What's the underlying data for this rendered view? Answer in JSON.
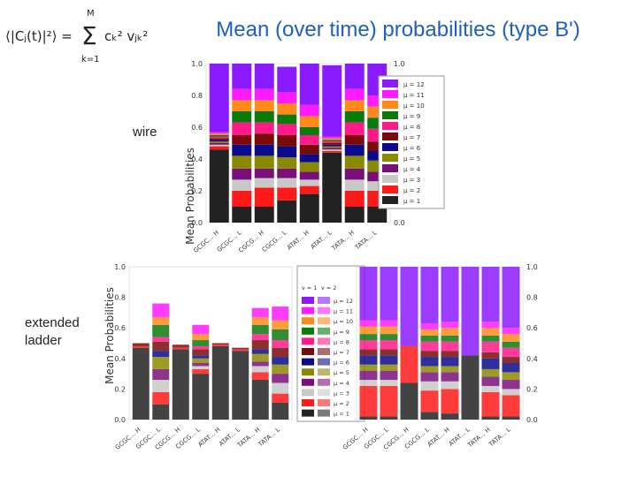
{
  "slide": {
    "title": "Mean (over time) probabilities (type B')",
    "formula_lhs": "⟨|Cⱼ(t)|²⟩ =",
    "formula_sum_top": "M",
    "formula_sum_bottom": "k=1",
    "formula_term": "cₖ² vⱼₖ²",
    "wire_label": "wire",
    "ladder_label": "extended ladder"
  },
  "legend": {
    "wire": [
      "μ = 12",
      "μ = 11",
      "μ = 10",
      "μ = 9",
      "μ = 8",
      "μ = 7",
      "μ = 6",
      "μ = 5",
      "μ = 4",
      "μ = 3",
      "μ = 2",
      "μ = 1"
    ],
    "ladder_header_1": "ν = 1",
    "ladder_header_2": "ν = 2",
    "ladder": [
      "μ = 12",
      "μ = 11",
      "μ = 10",
      "μ = 9",
      "μ = 8",
      "μ = 7",
      "μ = 6",
      "μ = 5",
      "μ = 4",
      "μ = 3",
      "μ = 2",
      "μ = 1"
    ]
  },
  "colors": [
    "#222222",
    "#ff1a1a",
    "#c8c8c8",
    "#7a0f7a",
    "#8a8a00",
    "#0a0a8a",
    "#7a0a0a",
    "#ff1a8a",
    "#0a7a0a",
    "#ff8a1a",
    "#ff1aff",
    "#8a1aff"
  ],
  "chart_data": [
    {
      "name": "wire",
      "type": "bar",
      "stacked": true,
      "ylabel": "Mean Probabilities",
      "ylim": [
        0,
        1
      ],
      "yticks": [
        "0.0",
        "0.2",
        "0.4",
        "0.6",
        "0.8",
        "1.0"
      ],
      "categories": [
        "GCGC... H",
        "GCGC... L",
        "CGCG... H",
        "CGCG... L",
        "ATAT... H",
        "ATAT... L",
        "TATA... H",
        "TATA... L"
      ],
      "series": [
        {
          "name": "μ = 1",
          "values": [
            0.46,
            0.1,
            0.1,
            0.14,
            0.18,
            0.44,
            0.1,
            0.1
          ]
        },
        {
          "name": "μ = 2",
          "values": [
            0.02,
            0.1,
            0.12,
            0.08,
            0.05,
            0.01,
            0.1,
            0.1
          ]
        },
        {
          "name": "μ = 3",
          "values": [
            0.01,
            0.07,
            0.06,
            0.06,
            0.04,
            0.01,
            0.07,
            0.06
          ]
        },
        {
          "name": "μ = 4",
          "values": [
            0.01,
            0.07,
            0.06,
            0.06,
            0.05,
            0.01,
            0.07,
            0.06
          ]
        },
        {
          "name": "μ = 5",
          "values": [
            0.01,
            0.08,
            0.08,
            0.07,
            0.06,
            0.01,
            0.08,
            0.07
          ]
        },
        {
          "name": "μ = 6",
          "values": [
            0.01,
            0.07,
            0.07,
            0.07,
            0.05,
            0.01,
            0.07,
            0.06
          ]
        },
        {
          "name": "μ = 7",
          "values": [
            0.01,
            0.06,
            0.07,
            0.07,
            0.06,
            0.01,
            0.06,
            0.06
          ]
        },
        {
          "name": "μ = 8",
          "values": [
            0.01,
            0.08,
            0.07,
            0.07,
            0.06,
            0.01,
            0.08,
            0.08
          ]
        },
        {
          "name": "μ = 9",
          "values": [
            0.01,
            0.07,
            0.07,
            0.06,
            0.05,
            0.01,
            0.07,
            0.07
          ]
        },
        {
          "name": "μ = 10",
          "values": [
            0.01,
            0.07,
            0.07,
            0.07,
            0.07,
            0.01,
            0.07,
            0.07
          ]
        },
        {
          "name": "μ = 11",
          "values": [
            0.01,
            0.07,
            0.07,
            0.07,
            0.07,
            0.01,
            0.07,
            0.07
          ]
        },
        {
          "name": "μ = 12",
          "values": [
            0.43,
            0.16,
            0.16,
            0.16,
            0.26,
            0.45,
            0.16,
            0.2
          ]
        }
      ]
    },
    {
      "name": "extended ladder (ν = 1)",
      "type": "bar",
      "stacked": true,
      "ylabel": "Mean Probabilities",
      "ylim": [
        0,
        1
      ],
      "yticks": [
        "0.0",
        "0.2",
        "0.4",
        "0.6",
        "0.8",
        "1.0"
      ],
      "categories": [
        "GCGC... H",
        "GCGC... L",
        "CGCG... H",
        "CGCG... L",
        "ATAT... H",
        "ATAT... L",
        "TATA... H",
        "TATA... L"
      ],
      "series": [
        {
          "name": "μ = 1",
          "values": [
            0.47,
            0.1,
            0.46,
            0.3,
            0.48,
            0.45,
            0.26,
            0.11
          ]
        },
        {
          "name": "μ = 2",
          "values": [
            0.01,
            0.08,
            0.01,
            0.03,
            0.01,
            0.01,
            0.05,
            0.06
          ]
        },
        {
          "name": "μ = 3",
          "values": [
            0.0,
            0.08,
            0.0,
            0.02,
            0.0,
            0.0,
            0.04,
            0.07
          ]
        },
        {
          "name": "μ = 4",
          "values": [
            0.0,
            0.07,
            0.0,
            0.02,
            0.0,
            0.0,
            0.03,
            0.06
          ]
        },
        {
          "name": "μ = 5",
          "values": [
            0.0,
            0.08,
            0.0,
            0.03,
            0.0,
            0.0,
            0.05,
            0.06
          ]
        },
        {
          "name": "μ = 6",
          "values": [
            0.0,
            0.04,
            0.0,
            0.02,
            0.0,
            0.0,
            0.03,
            0.05
          ]
        },
        {
          "name": "μ = 7",
          "values": [
            0.02,
            0.06,
            0.02,
            0.04,
            0.01,
            0.01,
            0.06,
            0.06
          ]
        },
        {
          "name": "μ = 8",
          "values": [
            0.0,
            0.03,
            0.0,
            0.02,
            0.0,
            0.0,
            0.04,
            0.05
          ]
        },
        {
          "name": "μ = 9",
          "values": [
            0.0,
            0.08,
            0.0,
            0.04,
            0.0,
            0.0,
            0.06,
            0.07
          ]
        },
        {
          "name": "μ = 10",
          "values": [
            0.0,
            0.05,
            0.0,
            0.04,
            0.0,
            0.0,
            0.05,
            0.06
          ]
        },
        {
          "name": "μ = 11",
          "values": [
            0.0,
            0.09,
            0.0,
            0.06,
            0.0,
            0.0,
            0.06,
            0.09
          ]
        },
        {
          "name": "μ = 12",
          "values": [
            0.0,
            0.0,
            0.0,
            0.0,
            0.0,
            0.0,
            0.0,
            0.0
          ]
        }
      ]
    },
    {
      "name": "extended ladder (ν = 2)",
      "type": "bar",
      "stacked": true,
      "ylim": [
        0,
        1
      ],
      "yticks": [
        "0.0",
        "0.2",
        "0.4",
        "0.6",
        "0.8",
        "1.0"
      ],
      "categories": [
        "GCGC... H",
        "GCGC... L",
        "CGCG... H",
        "CGCG... L",
        "ATAT... H",
        "ATAT... L",
        "TATA... H",
        "TATA... L"
      ],
      "series": [
        {
          "name": "μ = 1",
          "values": [
            0.02,
            0.02,
            0.24,
            0.05,
            0.04,
            0.42,
            0.02,
            0.02
          ]
        },
        {
          "name": "μ = 2",
          "values": [
            0.2,
            0.2,
            0.24,
            0.14,
            0.16,
            0.0,
            0.16,
            0.14
          ]
        },
        {
          "name": "μ = 3",
          "values": [
            0.04,
            0.04,
            0.0,
            0.06,
            0.05,
            0.0,
            0.04,
            0.04
          ]
        },
        {
          "name": "μ = 4",
          "values": [
            0.06,
            0.06,
            0.0,
            0.06,
            0.06,
            0.0,
            0.06,
            0.06
          ]
        },
        {
          "name": "μ = 5",
          "values": [
            0.04,
            0.04,
            0.0,
            0.04,
            0.04,
            0.0,
            0.05,
            0.05
          ]
        },
        {
          "name": "μ = 6",
          "values": [
            0.06,
            0.06,
            0.0,
            0.06,
            0.06,
            0.0,
            0.07,
            0.06
          ]
        },
        {
          "name": "μ = 7",
          "values": [
            0.04,
            0.04,
            0.0,
            0.04,
            0.04,
            0.0,
            0.04,
            0.04
          ]
        },
        {
          "name": "μ = 8",
          "values": [
            0.06,
            0.06,
            0.0,
            0.06,
            0.06,
            0.0,
            0.07,
            0.06
          ]
        },
        {
          "name": "μ = 9",
          "values": [
            0.04,
            0.04,
            0.0,
            0.04,
            0.04,
            0.0,
            0.04,
            0.04
          ]
        },
        {
          "name": "μ = 10",
          "values": [
            0.05,
            0.05,
            0.0,
            0.04,
            0.05,
            0.0,
            0.05,
            0.05
          ]
        },
        {
          "name": "μ = 11",
          "values": [
            0.04,
            0.04,
            0.0,
            0.04,
            0.04,
            0.0,
            0.04,
            0.04
          ]
        },
        {
          "name": "μ = 12",
          "values": [
            0.35,
            0.35,
            0.52,
            0.37,
            0.36,
            0.58,
            0.36,
            0.4
          ]
        }
      ]
    }
  ]
}
